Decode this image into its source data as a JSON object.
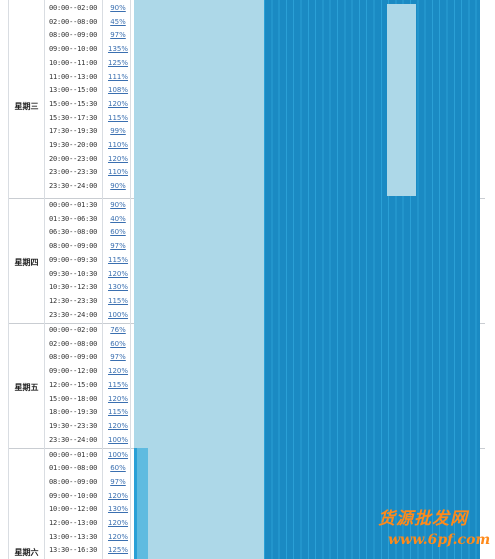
{
  "days": [
    {
      "label": "星期三",
      "rows": [
        {
          "time": "00:00--02:00",
          "pct": "90%"
        },
        {
          "time": "02:00--08:00",
          "pct": "45%"
        },
        {
          "time": "08:00--09:00",
          "pct": "97%"
        },
        {
          "time": "09:00--10:00",
          "pct": "135%"
        },
        {
          "time": "10:00--11:00",
          "pct": "125%"
        },
        {
          "time": "11:00--13:00",
          "pct": "111%"
        },
        {
          "time": "13:00--15:00",
          "pct": "108%"
        },
        {
          "time": "15:00--15:30",
          "pct": "120%"
        },
        {
          "time": "15:30--17:30",
          "pct": "115%"
        },
        {
          "time": "17:30--19:30",
          "pct": "99%"
        },
        {
          "time": "19:30--20:00",
          "pct": "110%"
        },
        {
          "time": "20:00--23:00",
          "pct": "120%"
        },
        {
          "time": "23:00--23:30",
          "pct": "110%"
        },
        {
          "time": "23:30--24:00",
          "pct": "90%"
        }
      ]
    },
    {
      "label": "星期四",
      "rows": [
        {
          "time": "00:00--01:30",
          "pct": "90%"
        },
        {
          "time": "01:30--06:30",
          "pct": "40%"
        },
        {
          "time": "06:30--08:00",
          "pct": "60%"
        },
        {
          "time": "08:00--09:00",
          "pct": "97%"
        },
        {
          "time": "09:00--09:30",
          "pct": "115%"
        },
        {
          "time": "09:30--10:30",
          "pct": "120%"
        },
        {
          "time": "10:30--12:30",
          "pct": "130%"
        },
        {
          "time": "12:30--23:30",
          "pct": "115%"
        },
        {
          "time": "23:30--24:00",
          "pct": "100%"
        }
      ]
    },
    {
      "label": "星期五",
      "rows": [
        {
          "time": "00:00--02:00",
          "pct": "76%"
        },
        {
          "time": "02:00--08:00",
          "pct": "60%"
        },
        {
          "time": "08:00--09:00",
          "pct": "97%"
        },
        {
          "time": "09:00--12:00",
          "pct": "120%"
        },
        {
          "time": "12:00--15:00",
          "pct": "115%"
        },
        {
          "time": "15:00--18:00",
          "pct": "120%"
        },
        {
          "time": "18:00--19:30",
          "pct": "115%"
        },
        {
          "time": "19:30--23:30",
          "pct": "120%"
        },
        {
          "time": "23:30--24:00",
          "pct": "100%"
        }
      ]
    },
    {
      "label": "星期六",
      "rows": [
        {
          "time": "00:00--01:00",
          "pct": "100%"
        },
        {
          "time": "01:00--08:00",
          "pct": "60%"
        },
        {
          "time": "08:00--09:00",
          "pct": "97%"
        },
        {
          "time": "09:00--10:00",
          "pct": "120%"
        },
        {
          "time": "10:00--12:00",
          "pct": "130%"
        },
        {
          "time": "12:00--13:00",
          "pct": "120%"
        },
        {
          "time": "13:00--13:30",
          "pct": "120%"
        },
        {
          "time": "13:30--16:30",
          "pct": "125%"
        }
      ]
    }
  ],
  "colors": {
    "light": "#add8e8",
    "dark": "#1a8ac3",
    "stripe": "#2aa0d6",
    "label": "#222222",
    "link": "#3a6fb0"
  },
  "watermark": {
    "title": "货源批发网",
    "url": "www.6pf.com"
  }
}
